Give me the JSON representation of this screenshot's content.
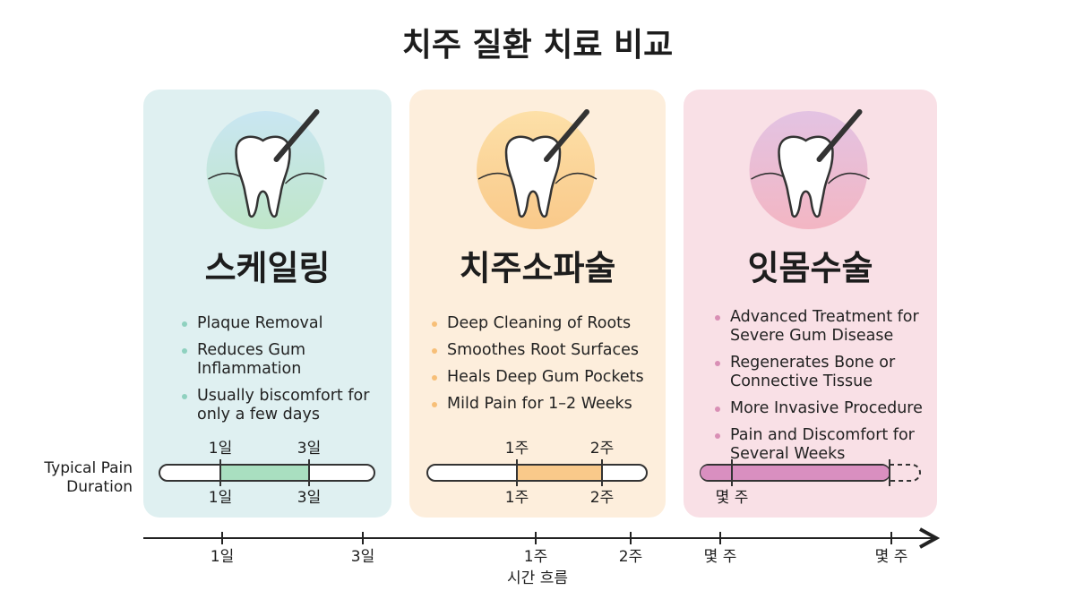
{
  "title": "치주 질환 치료 비교",
  "cards": [
    {
      "name": "스케일링",
      "bullets": [
        "Plaque Removal",
        "Reduces Gum Inflammation",
        "Usually biscomfort for only a few days"
      ],
      "timeline": {
        "top": [
          "1일",
          "3일"
        ],
        "bottom": [
          "1일",
          "3일"
        ]
      }
    },
    {
      "name": "치주소파술",
      "bullets": [
        "Deep Cleaning of Roots",
        "Smoothes Root Surfaces",
        "Heals Deep Gum Pockets",
        "Mild Pain for 1–2 Weeks"
      ],
      "timeline": {
        "top": [
          "1주",
          "2주"
        ],
        "bottom": [
          "1주",
          "2주"
        ]
      }
    },
    {
      "name": "잇몸수술",
      "bullets": [
        "Advanced Treatment for Severe Gum Disease",
        "Regenerates Bone or Connective Tissue",
        "More Invasive Procedure",
        "Pain and Discomfort for Several Weeks"
      ],
      "timeline": {
        "bottom": [
          "몇 주"
        ]
      }
    }
  ],
  "side_label": [
    "Typical Pain",
    "Duration"
  ],
  "time_axis": {
    "labels": [
      "1일",
      "3일",
      "1주",
      "2주",
      "몇 주",
      "몇 주"
    ],
    "title": "시간 흐름"
  }
}
